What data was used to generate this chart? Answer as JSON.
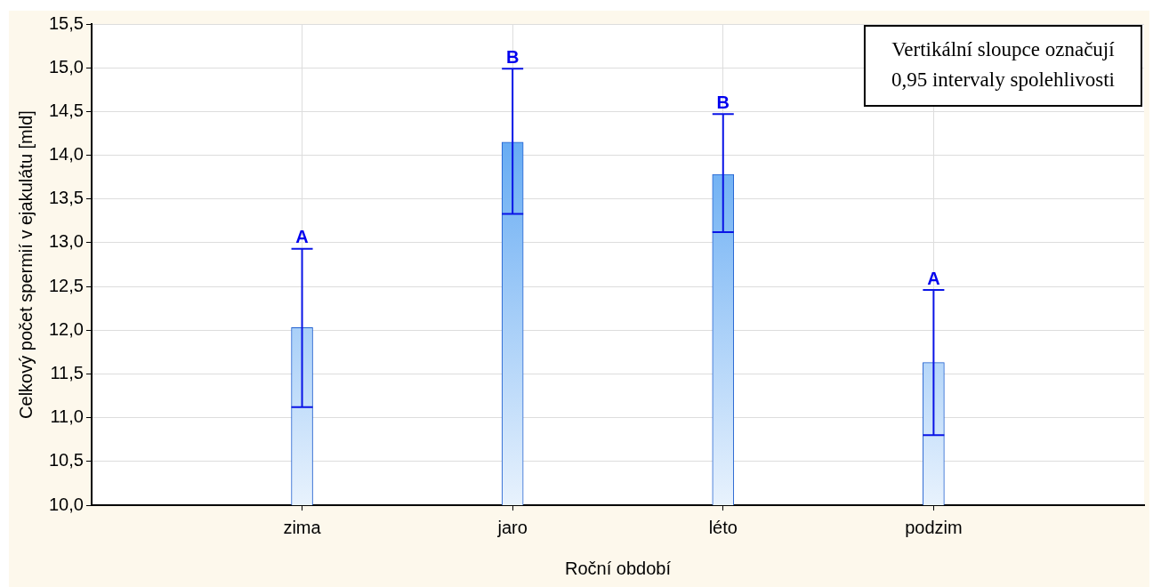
{
  "chart_data": {
    "type": "bar",
    "xlabel": "Roční období",
    "ylabel": "Celkový počet spermií v ejakulátu [mld]",
    "categories": [
      "zima",
      "jaro",
      "léto",
      "podzim"
    ],
    "values": [
      12.03,
      14.15,
      13.78,
      11.63
    ],
    "errors": [
      [
        11.12,
        12.93
      ],
      [
        13.33,
        14.99
      ],
      [
        13.12,
        14.47
      ],
      [
        10.8,
        12.46
      ]
    ],
    "color": "#3d95f0",
    "ylim": [
      10,
      15.5
    ],
    "yticks": [
      {
        "value": 10,
        "label": "10,0"
      },
      {
        "value": 10.5,
        "label": "10,5"
      },
      {
        "value": 11,
        "label": "11,0"
      },
      {
        "value": 11.5,
        "label": "11,5"
      },
      {
        "value": 12,
        "label": "12,0"
      },
      {
        "value": 12.5,
        "label": "12,5"
      },
      {
        "value": 13,
        "label": "13,0"
      },
      {
        "value": 13.5,
        "label": "13,5"
      },
      {
        "value": 14,
        "label": "14,0"
      },
      {
        "value": 14.5,
        "label": "14,5"
      },
      {
        "value": 15,
        "label": "15,0"
      },
      {
        "value": 15.5,
        "label": "15,5"
      }
    ],
    "grid": true,
    "legend": false,
    "annotations": [
      "Vertikální sloupce označují\n0,95 intervaly spolehlivosti",
      {
        "text": "A",
        "x": "zima",
        "y": 12.93
      },
      {
        "text": "B",
        "x": "jaro",
        "y": 14.99
      },
      {
        "text": "B",
        "x": "léto",
        "y": 14.47
      },
      {
        "text": "A",
        "x": "podzim",
        "y": 12.46
      }
    ]
  }
}
